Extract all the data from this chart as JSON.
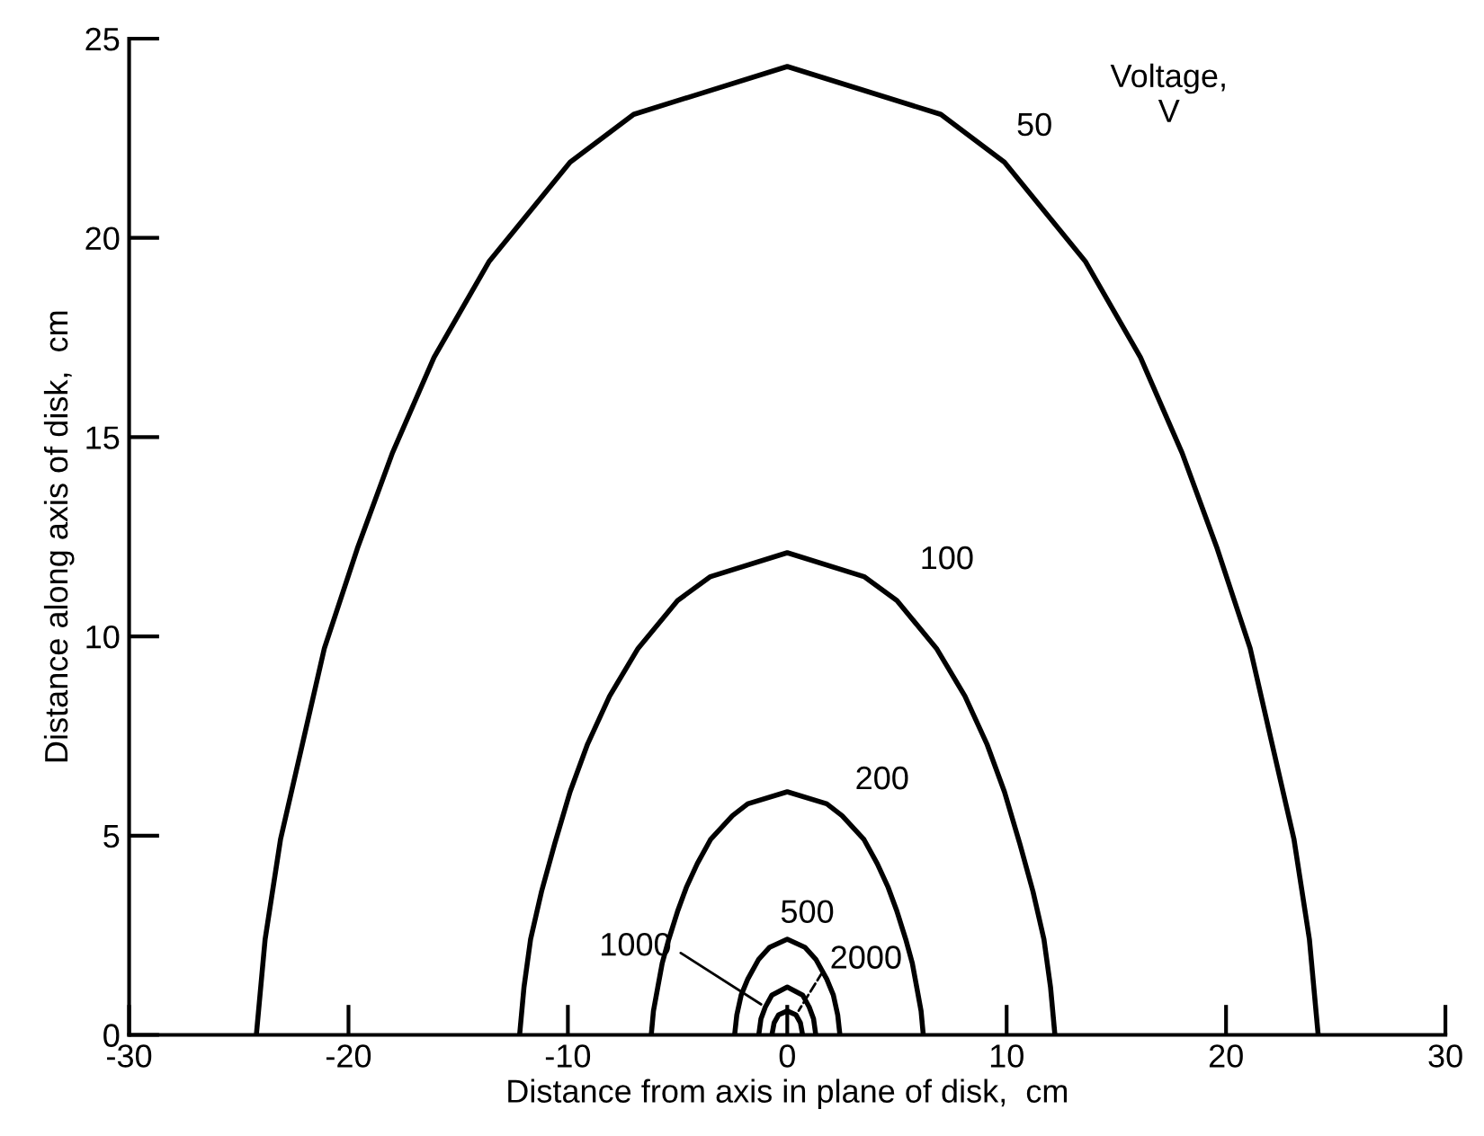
{
  "chart_data": {
    "type": "line",
    "xlabel": "Distance from axis in plane of disk,  cm",
    "ylabel": "Distance along axis of disk,  cm",
    "legend_title": "Voltage,\nV",
    "xlim": [
      -30,
      30
    ],
    "ylim": [
      0,
      25
    ],
    "xticks": [
      -30,
      -20,
      -10,
      0,
      10,
      20,
      30
    ],
    "yticks": [
      0,
      5,
      10,
      15,
      20,
      25
    ],
    "grid": false,
    "legend": false,
    "marker": "none",
    "line_style": "solid",
    "series": [
      {
        "name": "50",
        "color": "#000000",
        "x": [
          -24.2,
          -23.8,
          -23.1,
          -22.1,
          -21.1,
          -19.6,
          -18.0,
          -16.1,
          -13.6,
          -9.9,
          -7.0,
          0,
          7.0,
          9.9,
          13.6,
          16.1,
          18.0,
          19.6,
          21.1,
          22.1,
          23.1,
          23.8,
          24.2
        ],
        "values": [
          0,
          2.4,
          4.9,
          7.3,
          9.7,
          12.2,
          14.6,
          17.0,
          19.4,
          21.9,
          23.1,
          24.3,
          23.1,
          21.9,
          19.4,
          17.0,
          14.6,
          12.2,
          9.7,
          7.3,
          4.9,
          2.4,
          0
        ]
      },
      {
        "name": "100",
        "color": "#000000",
        "x": [
          -12.2,
          -12.0,
          -11.7,
          -11.2,
          -10.6,
          -9.9,
          -9.1,
          -8.1,
          -6.8,
          -5.0,
          -3.5,
          0,
          3.5,
          5.0,
          6.8,
          8.1,
          9.1,
          9.9,
          10.6,
          11.2,
          11.7,
          12.0,
          12.2
        ],
        "values": [
          0,
          1.2,
          2.4,
          3.6,
          4.8,
          6.1,
          7.3,
          8.5,
          9.7,
          10.9,
          11.5,
          12.1,
          11.5,
          10.9,
          9.7,
          8.5,
          7.3,
          6.1,
          4.8,
          3.6,
          2.4,
          1.2,
          0
        ]
      },
      {
        "name": "200",
        "color": "#000000",
        "x": [
          -6.2,
          -6.1,
          -5.9,
          -5.7,
          -5.4,
          -5.0,
          -4.6,
          -4.1,
          -3.5,
          -2.5,
          -1.8,
          0,
          1.8,
          2.5,
          3.5,
          4.1,
          4.6,
          5.0,
          5.4,
          5.7,
          5.9,
          6.1,
          6.2
        ],
        "values": [
          0,
          0.6,
          1.2,
          1.8,
          2.4,
          3.1,
          3.7,
          4.3,
          4.9,
          5.5,
          5.8,
          6.1,
          5.8,
          5.5,
          4.9,
          4.3,
          3.7,
          3.1,
          2.4,
          1.8,
          1.2,
          0.6,
          0
        ]
      },
      {
        "name": "500",
        "color": "#000000",
        "x": [
          -2.4,
          -2.3,
          -2.1,
          -1.8,
          -1.3,
          -0.8,
          0,
          0.8,
          1.3,
          1.8,
          2.1,
          2.3,
          2.4
        ],
        "values": [
          0,
          0.5,
          1.0,
          1.4,
          1.9,
          2.2,
          2.4,
          2.2,
          1.9,
          1.4,
          1.0,
          0.5,
          0
        ]
      },
      {
        "name": "1000",
        "color": "#000000",
        "x": [
          -1.3,
          -1.2,
          -1.0,
          -0.7,
          0,
          0.7,
          1.0,
          1.2,
          1.3
        ],
        "values": [
          0,
          0.4,
          0.7,
          1.0,
          1.2,
          1.0,
          0.7,
          0.4,
          0
        ]
      },
      {
        "name": "2000",
        "color": "#000000",
        "x": [
          -0.7,
          -0.6,
          -0.4,
          0,
          0.4,
          0.6,
          0.7
        ],
        "values": [
          0,
          0.3,
          0.5,
          0.6,
          0.5,
          0.3,
          0
        ]
      }
    ]
  }
}
